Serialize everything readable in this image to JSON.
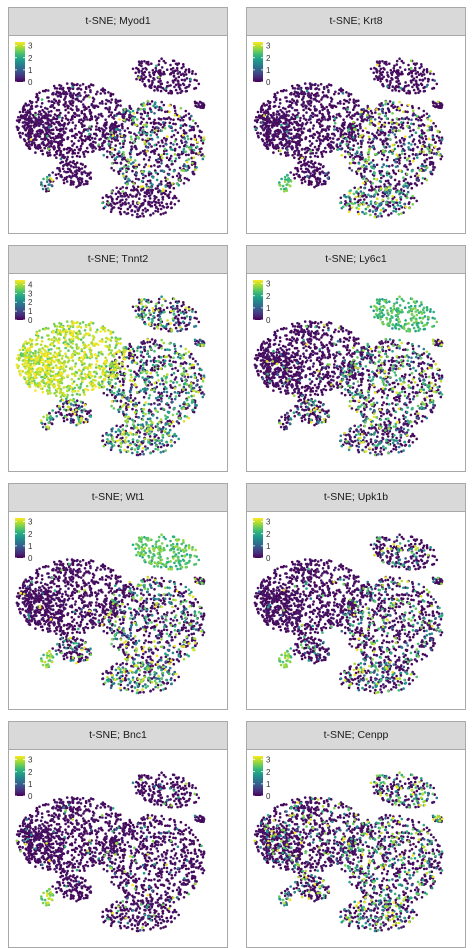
{
  "chart_data": [
    {
      "type": "scatter",
      "title": "t-SNE; Myod1",
      "legend_ticks": [
        0,
        1,
        2,
        3
      ],
      "scale_max": 3.3,
      "profile": [
        0.03,
        0.03,
        0.03,
        0.03,
        0.3,
        0.04,
        0.04,
        0.5
      ]
    },
    {
      "type": "scatter",
      "title": "t-SNE; Krt8",
      "legend_ticks": [
        0,
        1,
        2,
        3
      ],
      "scale_max": 3.3,
      "profile": [
        0.03,
        0.03,
        0.04,
        0.03,
        0.35,
        0.1,
        0.5,
        0.75
      ]
    },
    {
      "type": "scatter",
      "title": "t-SNE; Tnnt2",
      "legend_ticks": [
        0,
        1,
        2,
        3,
        4
      ],
      "scale_max": 4.5,
      "profile": [
        0.9,
        0.92,
        0.45,
        0.5,
        0.55,
        0.55,
        0.6,
        0.55
      ]
    },
    {
      "type": "scatter",
      "title": "t-SNE; Ly6c1",
      "legend_ticks": [
        0,
        1,
        2,
        3
      ],
      "scale_max": 3.3,
      "profile": [
        0.05,
        0.05,
        0.7,
        0.25,
        0.45,
        0.3,
        0.4,
        0.3
      ]
    },
    {
      "type": "scatter",
      "title": "t-SNE; Wt1",
      "legend_ticks": [
        0,
        1,
        2,
        3
      ],
      "scale_max": 3.3,
      "profile": [
        0.04,
        0.04,
        0.75,
        0.25,
        0.35,
        0.4,
        0.55,
        0.8
      ]
    },
    {
      "type": "scatter",
      "title": "t-SNE; Upk1b",
      "legend_ticks": [
        0,
        1,
        2,
        3
      ],
      "scale_max": 3.3,
      "profile": [
        0.03,
        0.03,
        0.25,
        0.2,
        0.3,
        0.1,
        0.35,
        0.8
      ]
    },
    {
      "type": "scatter",
      "title": "t-SNE; Bnc1",
      "legend_ticks": [
        0,
        1,
        2,
        3
      ],
      "scale_max": 3.3,
      "profile": [
        0.03,
        0.03,
        0.06,
        0.04,
        0.08,
        0.05,
        0.08,
        0.85
      ]
    },
    {
      "type": "scatter",
      "title": "t-SNE; Cenpp",
      "legend_ticks": [
        0,
        1,
        2,
        3
      ],
      "scale_max": 3.3,
      "profile": [
        0.15,
        0.15,
        0.4,
        0.3,
        0.35,
        0.6,
        0.45,
        0.6
      ]
    }
  ],
  "colors": {
    "viridis": [
      "#440154",
      "#482878",
      "#3e4a89",
      "#31688e",
      "#26828e",
      "#1f9e89",
      "#35b779",
      "#6ece58",
      "#b5de2b",
      "#fde725"
    ],
    "strip_background": "#d9d9d9",
    "panel_border": "#a8a8a8"
  }
}
